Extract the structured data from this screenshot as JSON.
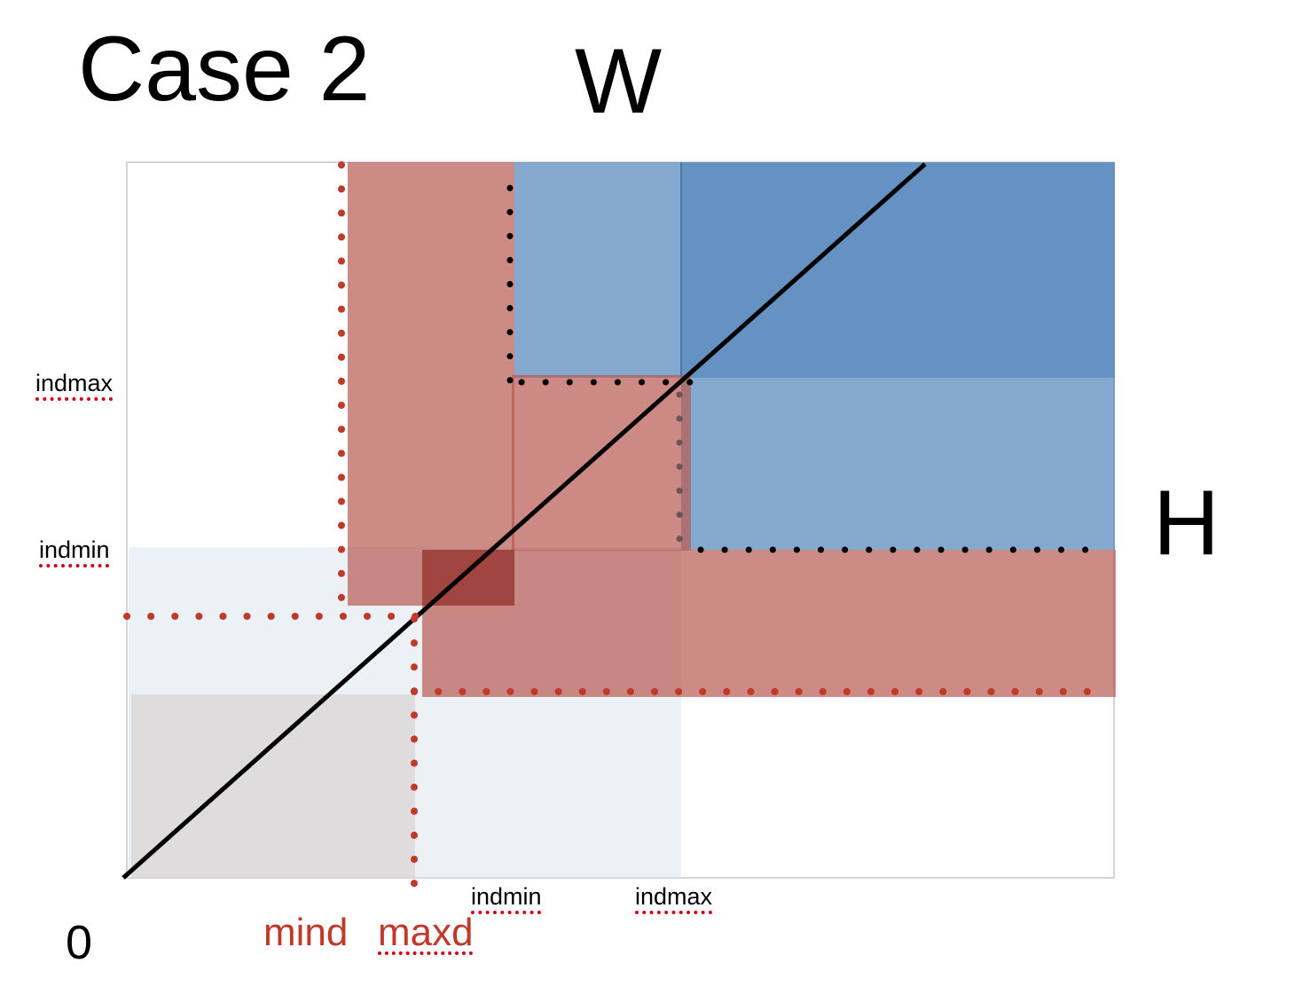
{
  "title": "Case 2",
  "axis_w_label": "W",
  "axis_h_label": "H",
  "origin_label": "0",
  "y_labels": {
    "indmax": "indmax",
    "indmin": "indmin"
  },
  "x_labels": {
    "indmin": "indmin",
    "indmax": "indmax"
  },
  "d_labels": {
    "mind": "mind",
    "maxd": "maxd"
  },
  "colors": {
    "blue_region": "#5b8bbd",
    "red_region": "#b85a52",
    "light_region": "#dde6ee",
    "gray_region": "#d8d3d3",
    "red_dots": "#c0392b",
    "black_dots": "#000000",
    "diagonal": "#000000",
    "squiggle": "#d0021b"
  }
}
